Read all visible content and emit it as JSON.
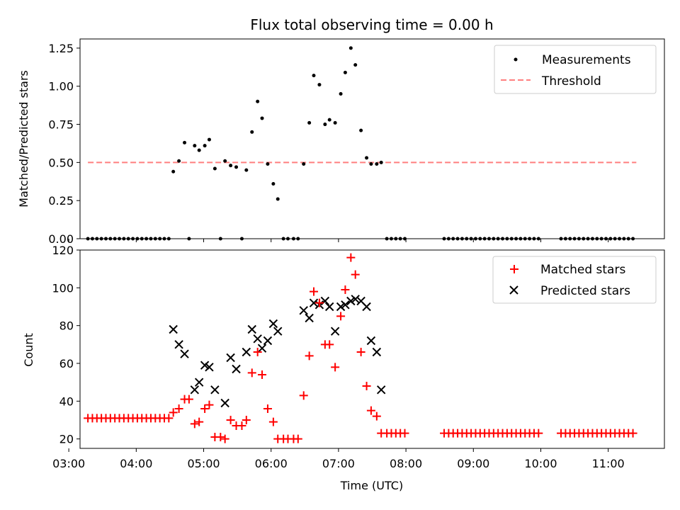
{
  "chart_data": [
    {
      "type": "scatter",
      "title": "Flux total observing time = 0.00 h",
      "xlabel": "",
      "ylabel": "Matched/Predicted stars",
      "xlim": [
        "03:10",
        "11:50"
      ],
      "ylim": [
        0,
        1.31
      ],
      "yticks": [
        "0.00",
        "0.25",
        "0.50",
        "0.75",
        "1.00",
        "1.25"
      ],
      "ytick_values": [
        0,
        0.25,
        0.5,
        0.75,
        1.0,
        1.25
      ],
      "grid": false,
      "legend_position": "top-right",
      "colors": {
        "measurements": "#000000",
        "threshold": "#ff7f7f"
      },
      "threshold": {
        "name": "Threshold",
        "x": [
          "03:17",
          "11:25"
        ],
        "y": 0.5
      },
      "series": [
        {
          "name": "Measurements",
          "points": [
            [
              "03:17",
              0
            ],
            [
              "03:21",
              0
            ],
            [
              "03:25",
              0
            ],
            [
              "03:29",
              0
            ],
            [
              "03:33",
              0
            ],
            [
              "03:37",
              0
            ],
            [
              "03:41",
              0
            ],
            [
              "03:45",
              0
            ],
            [
              "03:49",
              0
            ],
            [
              "03:53",
              0
            ],
            [
              "03:57",
              0
            ],
            [
              "04:01",
              0
            ],
            [
              "04:05",
              0
            ],
            [
              "04:09",
              0
            ],
            [
              "04:13",
              0
            ],
            [
              "04:17",
              0
            ],
            [
              "04:21",
              0
            ],
            [
              "04:25",
              0
            ],
            [
              "04:29",
              0
            ],
            [
              "04:33",
              0.44
            ],
            [
              "04:38",
              0.51
            ],
            [
              "04:43",
              0.63
            ],
            [
              "04:47",
              0
            ],
            [
              "04:52",
              0.61
            ],
            [
              "04:56",
              0.58
            ],
            [
              "05:01",
              0.61
            ],
            [
              "05:05",
              0.65
            ],
            [
              "05:10",
              0.46
            ],
            [
              "05:15",
              0
            ],
            [
              "05:19",
              0.51
            ],
            [
              "05:24",
              0.48
            ],
            [
              "05:29",
              0.47
            ],
            [
              "05:34",
              0
            ],
            [
              "05:38",
              0.45
            ],
            [
              "05:43",
              0.7
            ],
            [
              "05:48",
              0.9
            ],
            [
              "05:52",
              0.79
            ],
            [
              "05:57",
              0.49
            ],
            [
              "06:02",
              0.36
            ],
            [
              "06:06",
              0.26
            ],
            [
              "06:11",
              0
            ],
            [
              "06:15",
              0
            ],
            [
              "06:20",
              0
            ],
            [
              "06:24",
              0
            ],
            [
              "06:29",
              0.49
            ],
            [
              "06:34",
              0.76
            ],
            [
              "06:38",
              1.07
            ],
            [
              "06:43",
              1.01
            ],
            [
              "06:48",
              0.75
            ],
            [
              "06:52",
              0.78
            ],
            [
              "06:57",
              0.76
            ],
            [
              "07:02",
              0.95
            ],
            [
              "07:06",
              1.09
            ],
            [
              "07:11",
              1.25
            ],
            [
              "07:15",
              1.14
            ],
            [
              "07:20",
              0.71
            ],
            [
              "07:25",
              0.53
            ],
            [
              "07:29",
              0.49
            ],
            [
              "07:34",
              0.49
            ],
            [
              "07:38",
              0.5
            ],
            [
              "07:43",
              0
            ],
            [
              "07:47",
              0
            ],
            [
              "07:51",
              0
            ],
            [
              "07:55",
              0
            ],
            [
              "07:59",
              0
            ],
            [
              "08:34",
              0
            ],
            [
              "08:38",
              0
            ],
            [
              "08:42",
              0
            ],
            [
              "08:46",
              0
            ],
            [
              "08:50",
              0
            ],
            [
              "08:54",
              0
            ],
            [
              "08:58",
              0
            ],
            [
              "09:02",
              0
            ],
            [
              "09:06",
              0
            ],
            [
              "09:10",
              0
            ],
            [
              "09:14",
              0
            ],
            [
              "09:18",
              0
            ],
            [
              "09:22",
              0
            ],
            [
              "09:26",
              0
            ],
            [
              "09:30",
              0
            ],
            [
              "09:34",
              0
            ],
            [
              "09:38",
              0
            ],
            [
              "09:42",
              0
            ],
            [
              "09:46",
              0
            ],
            [
              "09:50",
              0
            ],
            [
              "09:54",
              0
            ],
            [
              "09:58",
              0
            ],
            [
              "10:18",
              0
            ],
            [
              "10:22",
              0
            ],
            [
              "10:26",
              0
            ],
            [
              "10:30",
              0
            ],
            [
              "10:34",
              0
            ],
            [
              "10:38",
              0
            ],
            [
              "10:42",
              0
            ],
            [
              "10:46",
              0
            ],
            [
              "10:50",
              0
            ],
            [
              "10:54",
              0
            ],
            [
              "10:58",
              0
            ],
            [
              "11:02",
              0
            ],
            [
              "11:06",
              0
            ],
            [
              "11:10",
              0
            ],
            [
              "11:14",
              0
            ],
            [
              "11:18",
              0
            ],
            [
              "11:22",
              0
            ]
          ]
        }
      ]
    },
    {
      "type": "scatter",
      "title": "",
      "xlabel": "Time (UTC)",
      "ylabel": "Count",
      "xlim": [
        "03:10",
        "11:50"
      ],
      "ylim": [
        15,
        120
      ],
      "xticks": [
        "03:00",
        "04:00",
        "05:00",
        "06:00",
        "07:00",
        "08:00",
        "09:00",
        "10:00",
        "11:00"
      ],
      "yticks": [
        "20",
        "40",
        "60",
        "80",
        "100",
        "120"
      ],
      "ytick_values": [
        20,
        40,
        60,
        80,
        100,
        120
      ],
      "grid": false,
      "legend_position": "top-right",
      "colors": {
        "matched": "#ff0000",
        "predicted": "#000000"
      },
      "series": [
        {
          "name": "Matched stars",
          "marker": "plus",
          "points": [
            [
              "03:17",
              31
            ],
            [
              "03:21",
              31
            ],
            [
              "03:25",
              31
            ],
            [
              "03:29",
              31
            ],
            [
              "03:33",
              31
            ],
            [
              "03:37",
              31
            ],
            [
              "03:41",
              31
            ],
            [
              "03:45",
              31
            ],
            [
              "03:49",
              31
            ],
            [
              "03:53",
              31
            ],
            [
              "03:57",
              31
            ],
            [
              "04:01",
              31
            ],
            [
              "04:05",
              31
            ],
            [
              "04:09",
              31
            ],
            [
              "04:13",
              31
            ],
            [
              "04:17",
              31
            ],
            [
              "04:21",
              31
            ],
            [
              "04:25",
              31
            ],
            [
              "04:29",
              31
            ],
            [
              "04:33",
              34
            ],
            [
              "04:38",
              36
            ],
            [
              "04:43",
              41
            ],
            [
              "04:47",
              41
            ],
            [
              "04:52",
              28
            ],
            [
              "04:56",
              29
            ],
            [
              "05:01",
              36
            ],
            [
              "05:05",
              38
            ],
            [
              "05:10",
              21
            ],
            [
              "05:15",
              21
            ],
            [
              "05:19",
              20
            ],
            [
              "05:24",
              30
            ],
            [
              "05:29",
              27
            ],
            [
              "05:34",
              27
            ],
            [
              "05:38",
              30
            ],
            [
              "05:43",
              55
            ],
            [
              "05:48",
              66
            ],
            [
              "05:52",
              54
            ],
            [
              "05:57",
              36
            ],
            [
              "06:02",
              29
            ],
            [
              "06:06",
              20
            ],
            [
              "06:11",
              20
            ],
            [
              "06:15",
              20
            ],
            [
              "06:20",
              20
            ],
            [
              "06:24",
              20
            ],
            [
              "06:29",
              43
            ],
            [
              "06:34",
              64
            ],
            [
              "06:38",
              98
            ],
            [
              "06:43",
              92
            ],
            [
              "06:48",
              70
            ],
            [
              "06:52",
              70
            ],
            [
              "06:57",
              58
            ],
            [
              "07:02",
              85
            ],
            [
              "07:06",
              99
            ],
            [
              "07:11",
              116
            ],
            [
              "07:15",
              107
            ],
            [
              "07:20",
              66
            ],
            [
              "07:25",
              48
            ],
            [
              "07:29",
              35
            ],
            [
              "07:34",
              32
            ],
            [
              "07:38",
              23
            ],
            [
              "07:43",
              23
            ],
            [
              "07:47",
              23
            ],
            [
              "07:51",
              23
            ],
            [
              "07:55",
              23
            ],
            [
              "07:59",
              23
            ],
            [
              "08:34",
              23
            ],
            [
              "08:38",
              23
            ],
            [
              "08:42",
              23
            ],
            [
              "08:46",
              23
            ],
            [
              "08:50",
              23
            ],
            [
              "08:54",
              23
            ],
            [
              "08:58",
              23
            ],
            [
              "09:02",
              23
            ],
            [
              "09:06",
              23
            ],
            [
              "09:10",
              23
            ],
            [
              "09:14",
              23
            ],
            [
              "09:18",
              23
            ],
            [
              "09:22",
              23
            ],
            [
              "09:26",
              23
            ],
            [
              "09:30",
              23
            ],
            [
              "09:34",
              23
            ],
            [
              "09:38",
              23
            ],
            [
              "09:42",
              23
            ],
            [
              "09:46",
              23
            ],
            [
              "09:50",
              23
            ],
            [
              "09:54",
              23
            ],
            [
              "09:58",
              23
            ],
            [
              "10:18",
              23
            ],
            [
              "10:22",
              23
            ],
            [
              "10:26",
              23
            ],
            [
              "10:30",
              23
            ],
            [
              "10:34",
              23
            ],
            [
              "10:38",
              23
            ],
            [
              "10:42",
              23
            ],
            [
              "10:46",
              23
            ],
            [
              "10:50",
              23
            ],
            [
              "10:54",
              23
            ],
            [
              "10:58",
              23
            ],
            [
              "11:02",
              23
            ],
            [
              "11:06",
              23
            ],
            [
              "11:10",
              23
            ],
            [
              "11:14",
              23
            ],
            [
              "11:18",
              23
            ],
            [
              "11:22",
              23
            ]
          ]
        },
        {
          "name": "Predicted stars",
          "marker": "x",
          "points": [
            [
              "04:33",
              78
            ],
            [
              "04:38",
              70
            ],
            [
              "04:43",
              65
            ],
            [
              "04:52",
              46
            ],
            [
              "04:56",
              50
            ],
            [
              "05:01",
              59
            ],
            [
              "05:05",
              58
            ],
            [
              "05:10",
              46
            ],
            [
              "05:19",
              39
            ],
            [
              "05:24",
              63
            ],
            [
              "05:29",
              57
            ],
            [
              "05:38",
              66
            ],
            [
              "05:43",
              78
            ],
            [
              "05:48",
              73
            ],
            [
              "05:52",
              68
            ],
            [
              "05:57",
              72
            ],
            [
              "06:02",
              81
            ],
            [
              "06:06",
              77
            ],
            [
              "06:29",
              88
            ],
            [
              "06:34",
              84
            ],
            [
              "06:38",
              92
            ],
            [
              "06:43",
              91
            ],
            [
              "06:48",
              93
            ],
            [
              "06:52",
              90
            ],
            [
              "06:57",
              77
            ],
            [
              "07:02",
              90
            ],
            [
              "07:06",
              91
            ],
            [
              "07:11",
              93
            ],
            [
              "07:15",
              94
            ],
            [
              "07:20",
              93
            ],
            [
              "07:25",
              90
            ],
            [
              "07:29",
              72
            ],
            [
              "07:34",
              66
            ],
            [
              "07:38",
              46
            ]
          ]
        }
      ]
    }
  ]
}
